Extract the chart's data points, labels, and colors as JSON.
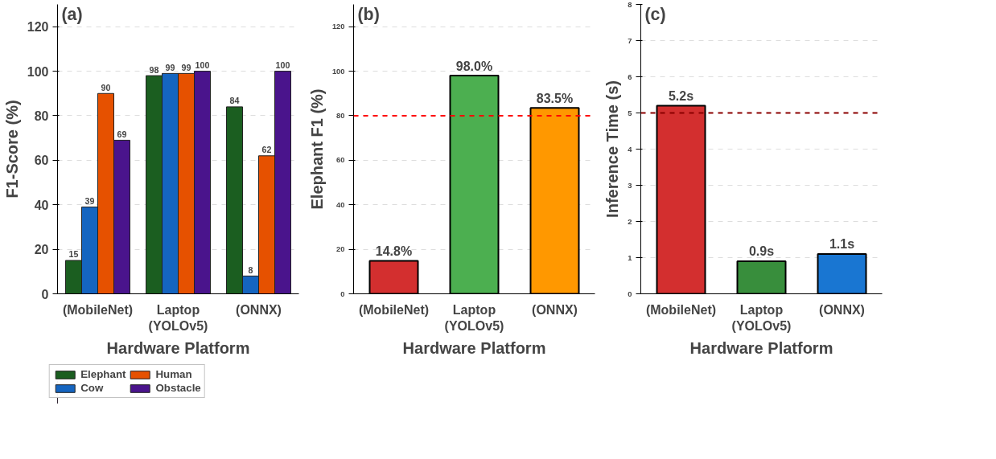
{
  "chart_data": [
    {
      "type": "bar",
      "title": "(a)",
      "xlabel": "Hardware Platform",
      "ylabel": "F1-Score (%)",
      "categories": [
        "(MobileNet)",
        "Laptop\n(YOLOv5)",
        "(ONNX)"
      ],
      "series": [
        {
          "name": "Elephant",
          "color": "#1b5e20",
          "values": [
            15,
            98,
            84
          ]
        },
        {
          "name": "Cow",
          "color": "#1565c0",
          "values": [
            39,
            99,
            8
          ]
        },
        {
          "name": "Human",
          "color": "#e65100",
          "values": [
            90,
            99,
            62
          ]
        },
        {
          "name": "Obstacle",
          "color": "#4a148c",
          "values": [
            69,
            100,
            100
          ]
        }
      ],
      "ylim": [
        0,
        130
      ],
      "yticks": [
        0,
        20,
        40,
        60,
        80,
        100,
        120
      ],
      "grid": "y",
      "legend": "bottom",
      "data_labels": true
    },
    {
      "type": "bar",
      "title": "(b)",
      "xlabel": "Hardware Platform",
      "ylabel": "Elephant F1 (%)",
      "categories": [
        "(MobileNet)",
        "Laptop\n(YOLOv5)",
        "(ONNX)"
      ],
      "values": [
        14.8,
        98.0,
        83.5
      ],
      "colors": [
        "#d32f2f",
        "#4caf50",
        "#ff9800"
      ],
      "value_labels": [
        "14.8%",
        "98.0%",
        "83.5%"
      ],
      "ylim": [
        0,
        130
      ],
      "yticks": [
        0,
        20,
        40,
        60,
        80,
        100,
        120
      ],
      "grid": "y",
      "ref_lines": [
        {
          "axis": "y",
          "value": 80,
          "color": "#ff0000",
          "line_style": "dashed"
        }
      ]
    },
    {
      "type": "bar",
      "title": "(c)",
      "xlabel": "Hardware Platform",
      "ylabel": "Inference Time (s)",
      "categories": [
        "(MobileNet)",
        "Laptop\n(YOLOv5)",
        "(ONNX)"
      ],
      "values": [
        5.2,
        0.9,
        1.1
      ],
      "colors": [
        "#d32f2f",
        "#388e3c",
        "#1976d2"
      ],
      "value_labels": [
        "5.2s",
        "0.9s",
        "1.1s"
      ],
      "ylim": [
        0,
        8
      ],
      "yticks": [
        0,
        1,
        2,
        3,
        4,
        5,
        6,
        7,
        8
      ],
      "grid": "y",
      "ref_lines": [
        {
          "axis": "y",
          "value": 5,
          "color": "#8b0000",
          "line_style": "dashed"
        }
      ]
    }
  ]
}
